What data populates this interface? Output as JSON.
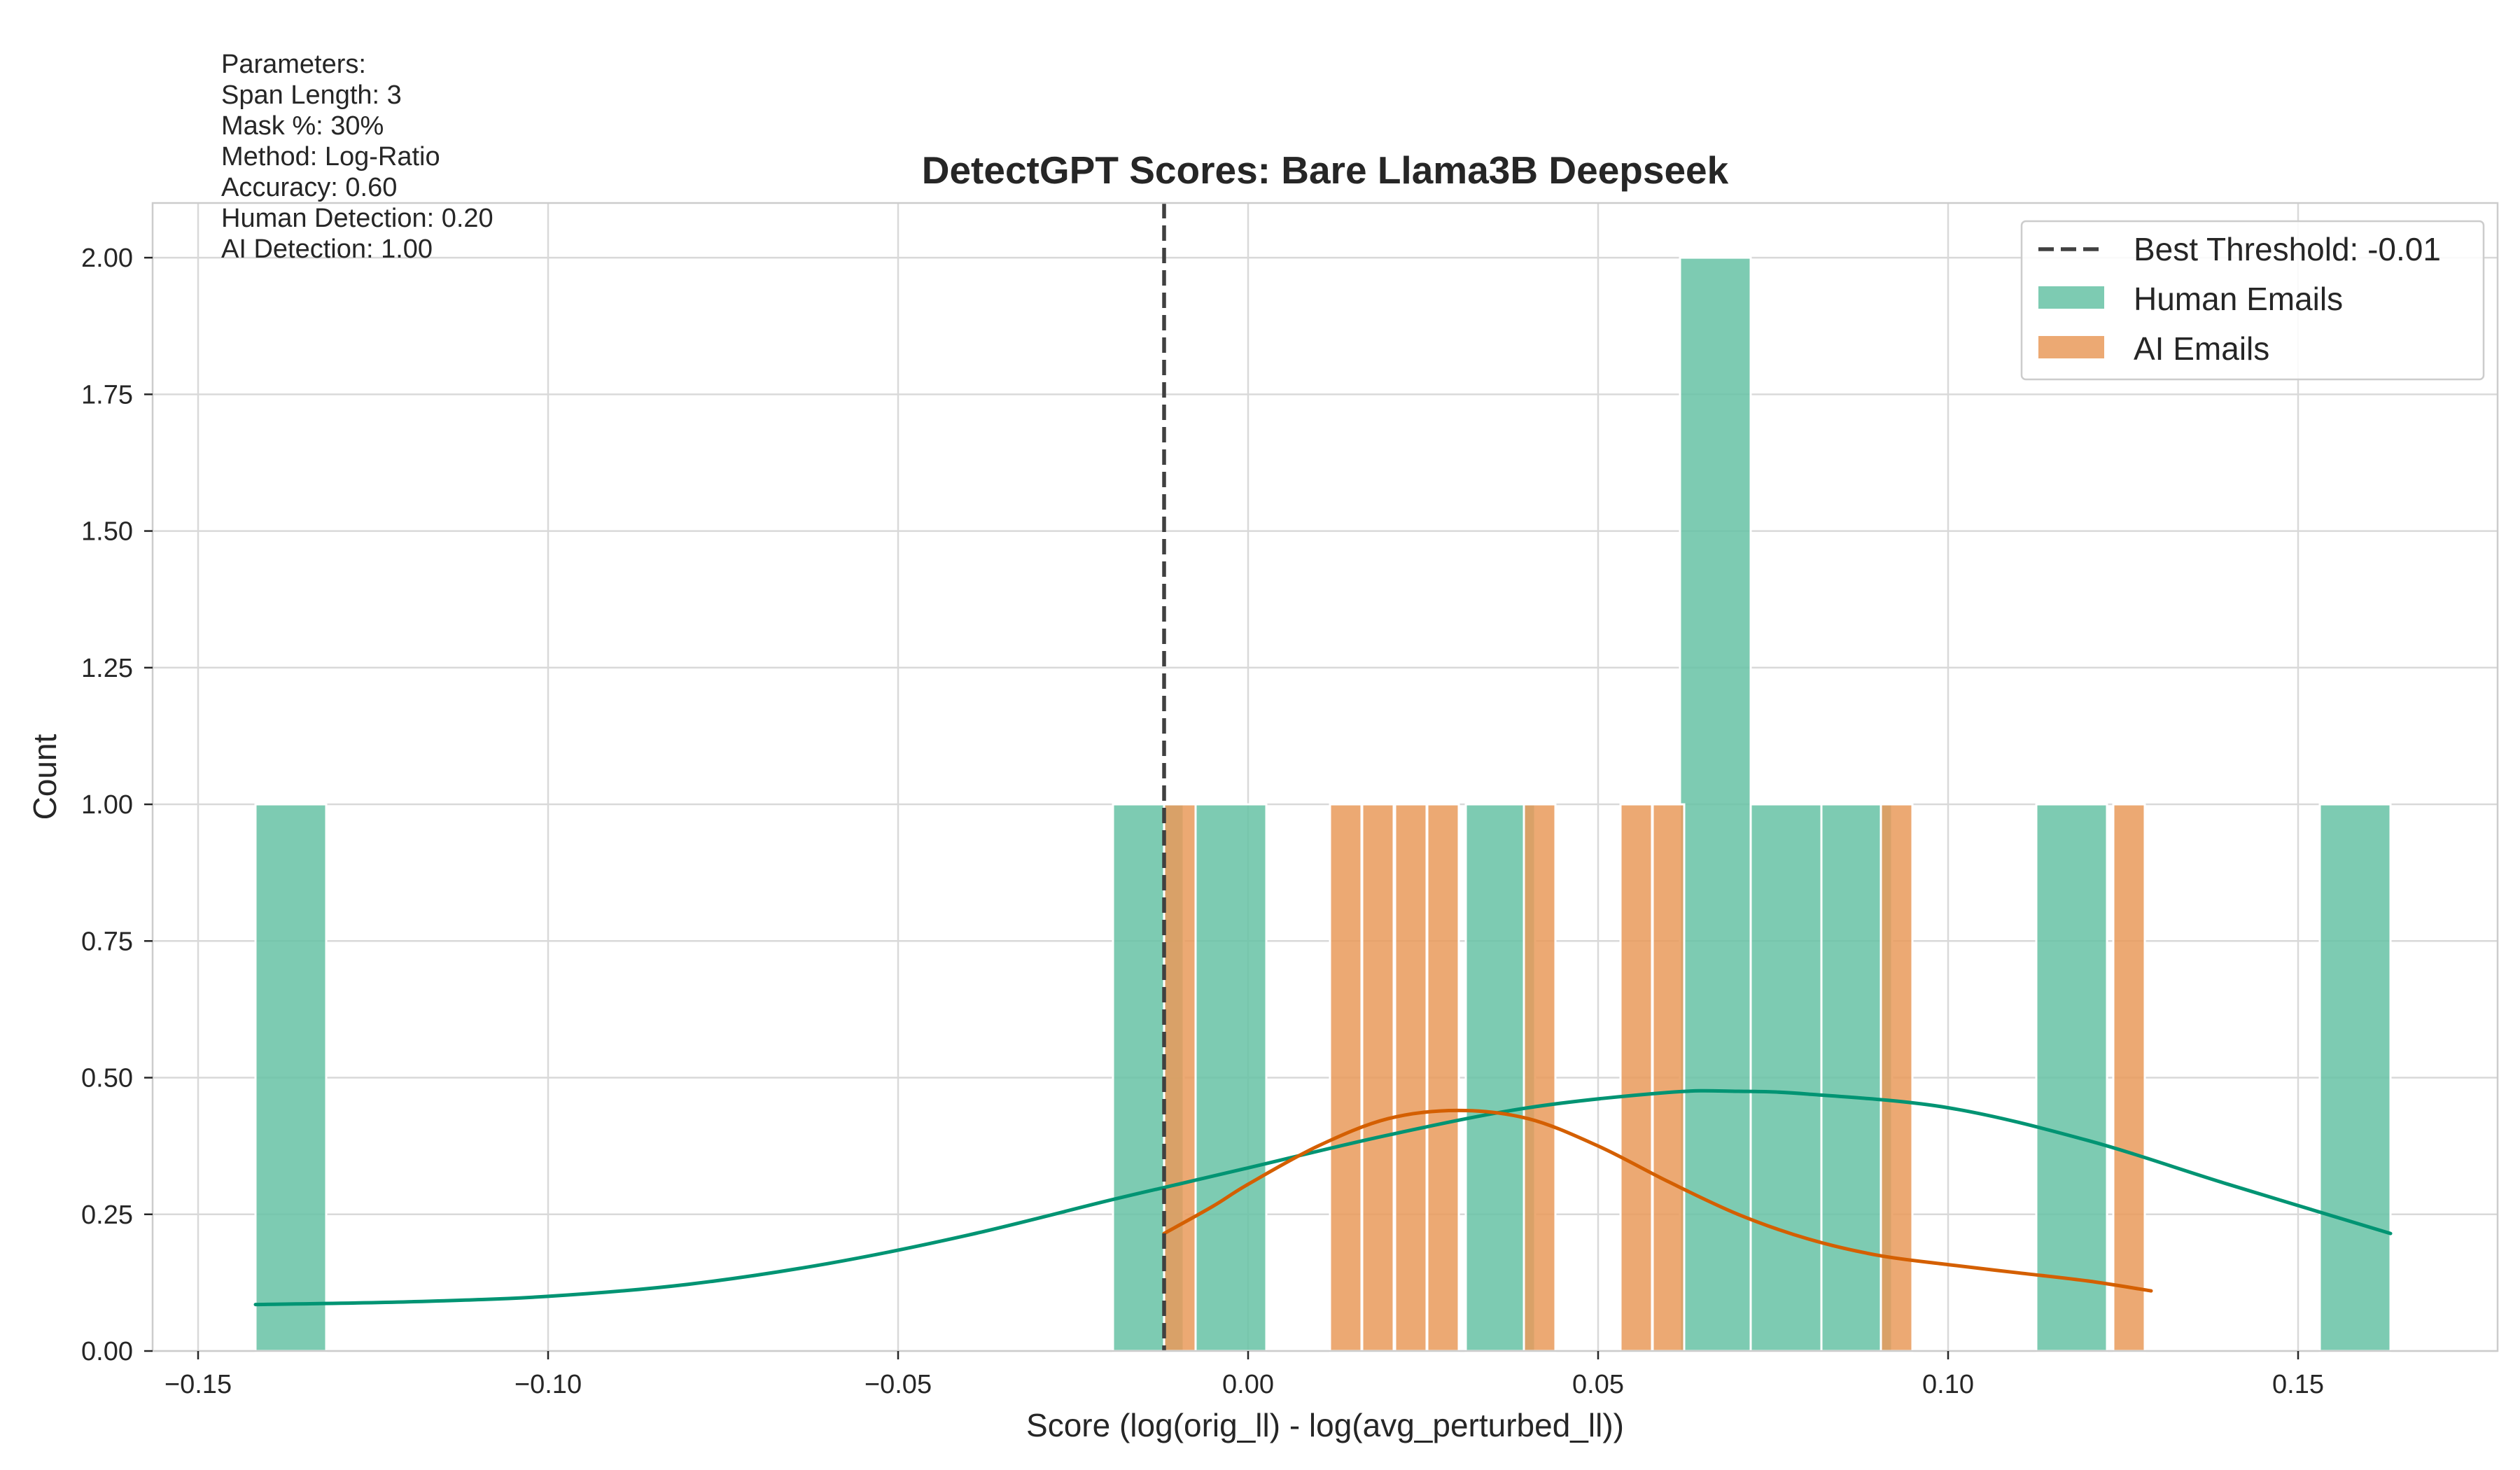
{
  "chart_data": {
    "type": "bar",
    "title": "DetectGPT Scores: Bare Llama3B Deepseek",
    "xlabel": "Score (log(orig_ll) - log(avg_perturbed_ll))",
    "ylabel": "Count",
    "xlim": [
      -0.1565,
      0.1785
    ],
    "ylim": [
      0,
      2.1
    ],
    "xticks": [
      -0.15,
      -0.1,
      -0.05,
      0.0,
      0.05,
      0.1,
      0.15
    ],
    "xtick_labels": [
      "−0.15",
      "−0.10",
      "−0.05",
      "0.00",
      "0.05",
      "0.10",
      "0.15"
    ],
    "yticks": [
      0,
      0.25,
      0.5,
      0.75,
      1.0,
      1.25,
      1.5,
      1.75,
      2.0
    ],
    "ytick_labels": [
      "0.00",
      "0.25",
      "0.50",
      "0.75",
      "1.00",
      "1.25",
      "1.50",
      "1.75",
      "2.00"
    ],
    "grid": true,
    "legend_position": "top-right",
    "threshold": {
      "label": "Best Threshold: -0.01",
      "value": -0.012,
      "color": "#404040"
    },
    "series": [
      {
        "name": "Human Emails",
        "color": "#66c2a5",
        "line_color": "#009473",
        "bins": [
          {
            "x0": -0.1418,
            "x1": -0.1317,
            "count": 1
          },
          {
            "x0": -0.0193,
            "x1": -0.0092,
            "count": 1
          },
          {
            "x0": -0.0075,
            "x1": 0.0026,
            "count": 1
          },
          {
            "x0": 0.0311,
            "x1": 0.041,
            "count": 1
          },
          {
            "x0": 0.0617,
            "x1": 0.0718,
            "count": 2
          },
          {
            "x0": 0.0718,
            "x1": 0.0819,
            "count": 1
          },
          {
            "x0": 0.0819,
            "x1": 0.092,
            "count": 1
          },
          {
            "x0": 0.1126,
            "x1": 0.1227,
            "count": 1
          },
          {
            "x0": 0.1531,
            "x1": 0.1632,
            "count": 1
          }
        ],
        "kde": {
          "x": [
            -0.1418,
            -0.12,
            -0.1,
            -0.08,
            -0.06,
            -0.04,
            -0.02,
            -0.01,
            0.0,
            0.02,
            0.04,
            0.06,
            0.07,
            0.08,
            0.1,
            0.12,
            0.14,
            0.1632
          ],
          "y": [
            0.085,
            0.09,
            0.1,
            0.122,
            0.16,
            0.212,
            0.275,
            0.305,
            0.335,
            0.395,
            0.445,
            0.473,
            0.475,
            0.47,
            0.445,
            0.385,
            0.305,
            0.215
          ]
        }
      },
      {
        "name": "AI Emails",
        "color": "#e99a5a",
        "line_color": "#d45f00",
        "bins": [
          {
            "x0": -0.012,
            "x1": -0.0075,
            "count": 1
          },
          {
            "x0": 0.0117,
            "x1": 0.0162,
            "count": 1
          },
          {
            "x0": 0.0163,
            "x1": 0.0208,
            "count": 1
          },
          {
            "x0": 0.021,
            "x1": 0.0255,
            "count": 1
          },
          {
            "x0": 0.0256,
            "x1": 0.0301,
            "count": 1
          },
          {
            "x0": 0.0394,
            "x1": 0.0439,
            "count": 1
          },
          {
            "x0": 0.0532,
            "x1": 0.0577,
            "count": 1
          },
          {
            "x0": 0.0578,
            "x1": 0.0623,
            "count": 1
          },
          {
            "x0": 0.0904,
            "x1": 0.0949,
            "count": 1
          },
          {
            "x0": 0.1236,
            "x1": 0.1281,
            "count": 1
          }
        ],
        "kde": {
          "x": [
            -0.012,
            -0.005,
            0.0,
            0.01,
            0.02,
            0.03,
            0.04,
            0.05,
            0.06,
            0.07,
            0.08,
            0.09,
            0.1,
            0.11,
            0.12,
            0.129
          ],
          "y": [
            0.215,
            0.265,
            0.305,
            0.375,
            0.425,
            0.44,
            0.425,
            0.375,
            0.31,
            0.25,
            0.205,
            0.175,
            0.158,
            0.143,
            0.128,
            0.11
          ]
        }
      }
    ]
  },
  "parameters": {
    "heading": "Parameters:",
    "lines": [
      "Span Length: 3",
      "Mask %: 30%",
      "Method: Log-Ratio",
      "Accuracy: 0.60",
      "Human Detection: 0.20",
      "AI Detection: 1.00"
    ]
  }
}
